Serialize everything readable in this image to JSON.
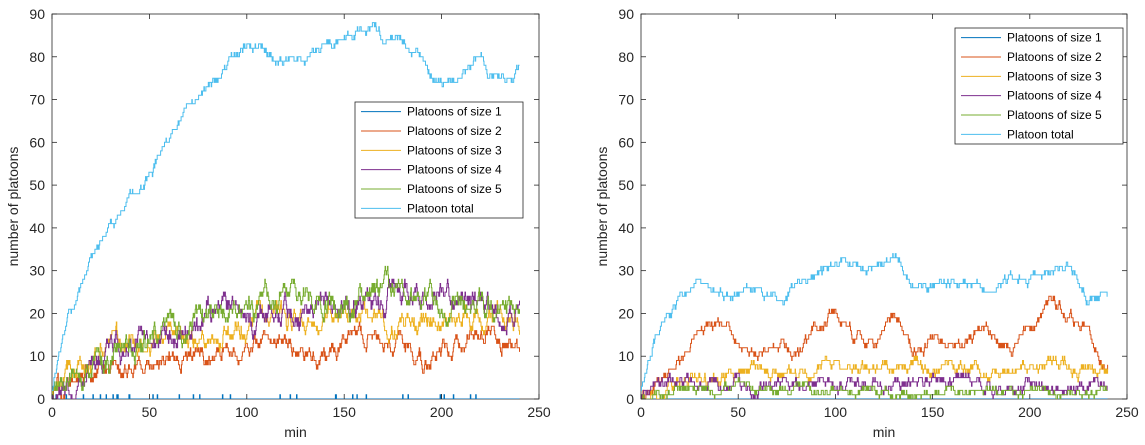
{
  "colors": {
    "size1": "#0072BD",
    "size2": "#D95319",
    "size3": "#EDB120",
    "size4": "#7E2F8E",
    "size5": "#77AC30",
    "total": "#4DBEEE",
    "axis": "#262626"
  },
  "chart_data": [
    {
      "type": "line",
      "xlabel": "min",
      "ylabel": "number of platoons",
      "xlim": [
        0,
        250
      ],
      "ylim": [
        0,
        90
      ],
      "xticks": [
        0,
        50,
        100,
        150,
        200,
        250
      ],
      "yticks": [
        0,
        10,
        20,
        30,
        40,
        50,
        60,
        70,
        80,
        90
      ],
      "grid": false,
      "legend_position": "right-middle",
      "series": [
        {
          "name": "Platoons of size 1",
          "x": [
            0,
            240
          ],
          "y": [
            0,
            0
          ],
          "noise": 0.5,
          "color_key": "size1"
        },
        {
          "name": "Platoons of size 2",
          "x": [
            0,
            10,
            25,
            50,
            75,
            100,
            125,
            140,
            150,
            175,
            190,
            200,
            225,
            240
          ],
          "y": [
            1,
            4,
            7,
            8,
            10,
            12,
            13,
            8,
            14,
            15,
            8,
            13,
            14,
            11
          ],
          "noise": 3,
          "color_key": "size2"
        },
        {
          "name": "Platoons of size 3",
          "x": [
            0,
            10,
            25,
            50,
            75,
            100,
            125,
            150,
            175,
            200,
            225,
            240
          ],
          "y": [
            1,
            6,
            10,
            13,
            15,
            18,
            19,
            20,
            19,
            17,
            20,
            18
          ],
          "noise": 3.5,
          "color_key": "size3"
        },
        {
          "name": "Platoons of size 4",
          "x": [
            0,
            10,
            25,
            50,
            75,
            100,
            125,
            150,
            175,
            200,
            225,
            240
          ],
          "y": [
            1,
            5,
            8,
            14,
            18,
            20,
            21,
            23,
            24,
            22,
            22,
            20
          ],
          "noise": 4,
          "color_key": "size4"
        },
        {
          "name": "Platoons of size 5",
          "x": [
            0,
            10,
            25,
            50,
            75,
            100,
            125,
            150,
            175,
            200,
            225,
            240
          ],
          "y": [
            0,
            4,
            8,
            13,
            19,
            22,
            24,
            23,
            25,
            22,
            21,
            23
          ],
          "noise": 4,
          "color_key": "size5"
        },
        {
          "name": "Platoon total",
          "x": [
            0,
            5,
            10,
            20,
            30,
            40,
            50,
            60,
            70,
            80,
            90,
            100,
            110,
            120,
            130,
            140,
            150,
            160,
            165,
            170,
            180,
            190,
            195,
            200,
            210,
            220,
            225,
            230,
            240
          ],
          "y": [
            2,
            14,
            21,
            33,
            40,
            47,
            53,
            60,
            68,
            73,
            79,
            82,
            80,
            78,
            80,
            82,
            84,
            86,
            88,
            83,
            84,
            80,
            75,
            74,
            75,
            82,
            76,
            74,
            77
          ],
          "noise": 1.5,
          "color_key": "total"
        }
      ]
    },
    {
      "type": "line",
      "xlabel": "min",
      "ylabel": "number of platoons",
      "xlim": [
        0,
        250
      ],
      "ylim": [
        0,
        90
      ],
      "xticks": [
        0,
        50,
        100,
        150,
        200,
        250
      ],
      "yticks": [
        0,
        10,
        20,
        30,
        40,
        50,
        60,
        70,
        80,
        90
      ],
      "grid": false,
      "legend_position": "top-right",
      "series": [
        {
          "name": "Platoons of size 1",
          "x": [
            0,
            240
          ],
          "y": [
            0,
            0
          ],
          "noise": 0,
          "color_key": "size1"
        },
        {
          "name": "Platoons of size 2",
          "x": [
            0,
            10,
            20,
            30,
            45,
            55,
            70,
            80,
            90,
            100,
            110,
            120,
            130,
            140,
            150,
            160,
            175,
            190,
            200,
            210,
            220,
            230,
            240
          ],
          "y": [
            0,
            4,
            10,
            16,
            17,
            11,
            14,
            10,
            16,
            20,
            15,
            13,
            21,
            12,
            14,
            11,
            17,
            11,
            16,
            23,
            19,
            16,
            8
          ],
          "noise": 2,
          "color_key": "size2"
        },
        {
          "name": "Platoons of size 3",
          "x": [
            0,
            20,
            40,
            60,
            80,
            100,
            120,
            140,
            160,
            180,
            200,
            220,
            240
          ],
          "y": [
            0,
            4,
            5,
            7,
            5,
            8,
            6,
            7,
            7,
            6,
            8,
            7,
            6
          ],
          "noise": 2,
          "color_key": "size3"
        },
        {
          "name": "Platoons of size 4",
          "x": [
            0,
            20,
            40,
            60,
            80,
            100,
            120,
            140,
            160,
            180,
            200,
            220,
            240
          ],
          "y": [
            1,
            5,
            3,
            4,
            4,
            3,
            4,
            3,
            4,
            3,
            3,
            3,
            4
          ],
          "noise": 2,
          "color_key": "size4"
        },
        {
          "name": "Platoons of size 5",
          "x": [
            0,
            20,
            40,
            60,
            80,
            100,
            120,
            140,
            160,
            180,
            200,
            220,
            240
          ],
          "y": [
            0,
            2,
            2,
            2,
            2,
            2,
            2,
            1,
            2,
            2,
            2,
            2,
            2
          ],
          "noise": 1.5,
          "color_key": "size5"
        },
        {
          "name": "Platoon total",
          "x": [
            0,
            10,
            20,
            30,
            40,
            50,
            60,
            70,
            80,
            90,
            100,
            110,
            120,
            130,
            140,
            150,
            160,
            170,
            180,
            190,
            200,
            210,
            220,
            230,
            240
          ],
          "y": [
            3,
            18,
            23,
            28,
            24,
            25,
            27,
            23,
            26,
            29,
            31,
            31,
            31,
            33,
            28,
            26,
            28,
            27,
            26,
            28,
            28,
            30,
            31,
            23,
            24
          ],
          "noise": 1.5,
          "color_key": "total"
        }
      ]
    }
  ]
}
